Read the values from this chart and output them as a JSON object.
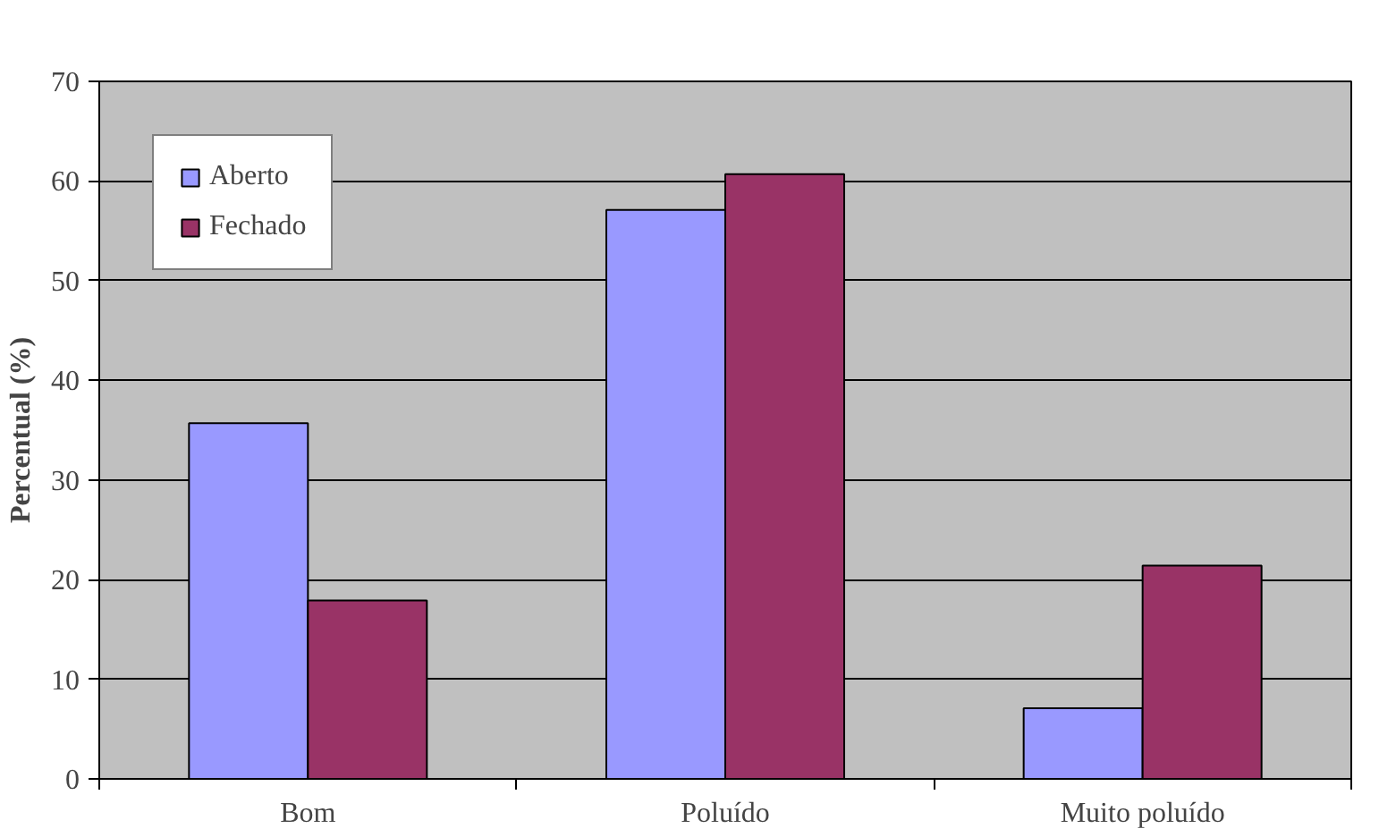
{
  "chart_data": {
    "type": "bar",
    "ylabel": "Percentual (%)",
    "categories": [
      "Bom",
      "Poluído",
      "Muito poluído"
    ],
    "series": [
      {
        "name": "Aberto",
        "color": "#9999ff",
        "values": [
          35.7,
          57.1,
          7.1
        ]
      },
      {
        "name": "Fechado",
        "color": "#993366",
        "values": [
          17.9,
          60.7,
          21.4
        ]
      }
    ],
    "ylim": [
      0,
      70
    ],
    "yticks": [
      0,
      10,
      20,
      30,
      40,
      50,
      60,
      70
    ],
    "grid": "y",
    "legend": "top left"
  }
}
